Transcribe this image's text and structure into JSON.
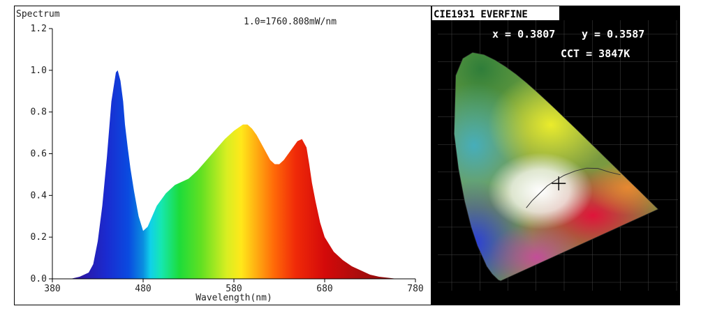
{
  "chart_data": [
    {
      "type": "area",
      "title": "Spectrum",
      "annotation": "1.0=1760.808mW/nm",
      "xlabel": "Wavelength(nm)",
      "ylabel": "",
      "xlim": [
        380,
        780
      ],
      "ylim": [
        0,
        1.2
      ],
      "x_ticks": [
        "380",
        "480",
        "580",
        "680",
        "780"
      ],
      "y_ticks": [
        "0.0",
        "0.2",
        "0.4",
        "0.6",
        "0.8",
        "1.0",
        "1.2"
      ],
      "grid": false,
      "fill": "visible-spectrum gradient",
      "x": [
        380,
        392,
        400,
        410,
        420,
        425,
        430,
        435,
        440,
        445,
        450,
        452,
        455,
        458,
        460,
        463,
        466,
        470,
        475,
        480,
        485,
        490,
        495,
        500,
        505,
        510,
        515,
        520,
        530,
        540,
        550,
        560,
        570,
        580,
        590,
        595,
        600,
        605,
        610,
        615,
        620,
        625,
        630,
        635,
        640,
        645,
        650,
        655,
        660,
        663,
        666,
        670,
        675,
        680,
        690,
        700,
        710,
        720,
        730,
        740,
        750,
        760,
        770,
        780
      ],
      "values": [
        0.0,
        0.0,
        0.0,
        0.01,
        0.03,
        0.07,
        0.18,
        0.35,
        0.58,
        0.85,
        0.99,
        1.0,
        0.95,
        0.85,
        0.74,
        0.63,
        0.53,
        0.42,
        0.3,
        0.23,
        0.25,
        0.3,
        0.35,
        0.38,
        0.41,
        0.43,
        0.45,
        0.46,
        0.48,
        0.52,
        0.57,
        0.62,
        0.67,
        0.71,
        0.74,
        0.74,
        0.72,
        0.69,
        0.65,
        0.61,
        0.57,
        0.55,
        0.55,
        0.57,
        0.6,
        0.63,
        0.66,
        0.67,
        0.63,
        0.55,
        0.46,
        0.37,
        0.27,
        0.2,
        0.13,
        0.09,
        0.06,
        0.04,
        0.02,
        0.01,
        0.005,
        0.0,
        0.0,
        0.0
      ]
    },
    {
      "type": "scatter",
      "title": "CIE1931 EVERFINE",
      "x_label_text": "x = 0.3807",
      "y_label_text": "y = 0.3587",
      "cct_text": "CCT = 3847K",
      "xlim": [
        0,
        0.8
      ],
      "ylim": [
        0,
        0.9
      ],
      "x": [
        0.3807
      ],
      "values": [
        0.3587
      ],
      "locus": [
        [
          0.1741,
          0.005
        ],
        [
          0.1655,
          0.0086
        ],
        [
          0.144,
          0.0297
        ],
        [
          0.1241,
          0.0578
        ],
        [
          0.0913,
          0.1327
        ],
        [
          0.0687,
          0.2007
        ],
        [
          0.0454,
          0.295
        ],
        [
          0.0235,
          0.4127
        ],
        [
          0.0082,
          0.5384
        ],
        [
          0.0139,
          0.7502
        ],
        [
          0.0389,
          0.812
        ],
        [
          0.0743,
          0.8338
        ],
        [
          0.1142,
          0.8262
        ],
        [
          0.1547,
          0.8059
        ],
        [
          0.1929,
          0.7816
        ],
        [
          0.2296,
          0.7543
        ],
        [
          0.2658,
          0.7243
        ],
        [
          0.3016,
          0.6923
        ],
        [
          0.3373,
          0.6589
        ],
        [
          0.3731,
          0.6245
        ],
        [
          0.4087,
          0.5896
        ],
        [
          0.4441,
          0.5547
        ],
        [
          0.4788,
          0.5202
        ],
        [
          0.5125,
          0.4866
        ],
        [
          0.5448,
          0.4544
        ],
        [
          0.5752,
          0.4242
        ],
        [
          0.6029,
          0.3965
        ],
        [
          0.627,
          0.3725
        ],
        [
          0.6482,
          0.3514
        ],
        [
          0.6658,
          0.334
        ],
        [
          0.6915,
          0.3083
        ],
        [
          0.7347,
          0.2653
        ]
      ]
    }
  ]
}
